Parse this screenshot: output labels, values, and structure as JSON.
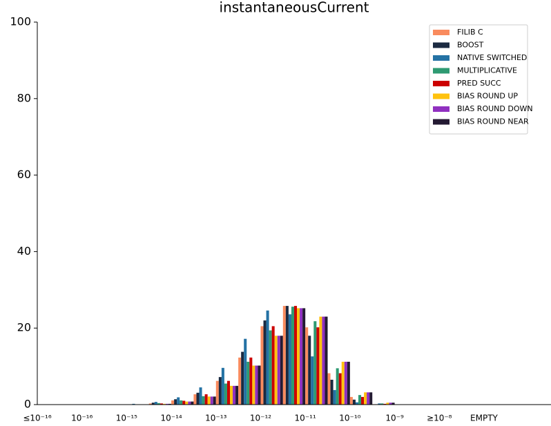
{
  "chart_data": {
    "type": "bar",
    "title": "instantaneousCurrent",
    "categories": [
      "≤10⁻¹⁶",
      null,
      "10⁻¹⁶",
      null,
      "10⁻¹⁵",
      null,
      "10⁻¹⁴",
      null,
      "10⁻¹³",
      null,
      "10⁻¹²",
      null,
      "10⁻¹¹",
      null,
      "10⁻¹⁰",
      null,
      "10⁻⁹",
      null,
      "≥10⁻⁸",
      null,
      "EMPTY",
      null,
      null
    ],
    "series": [
      {
        "name": "FILIB C",
        "color": "#f98b5e",
        "values": [
          0,
          0,
          0,
          0,
          0,
          0.3,
          1.1,
          2.7,
          6.2,
          12.3,
          20.5,
          25.8,
          20.2,
          8.2,
          2.0,
          0.1,
          0,
          0,
          0,
          0,
          0,
          0,
          0
        ]
      },
      {
        "name": "BOOST",
        "color": "#1b2a41",
        "values": [
          0,
          0,
          0,
          0,
          0,
          0.5,
          1.4,
          3.1,
          7.2,
          13.8,
          22,
          25.8,
          18,
          6.5,
          1.3,
          0.1,
          0,
          0,
          0,
          0,
          0,
          0,
          0
        ]
      },
      {
        "name": "NATIVE SWITCHED",
        "color": "#2472a4",
        "values": [
          0,
          0,
          0,
          0,
          0.2,
          0.7,
          1.9,
          4.5,
          9.6,
          17.2,
          24.6,
          23.6,
          12.6,
          3.8,
          0.6,
          0.3,
          0,
          0,
          0,
          0,
          0,
          0,
          0
        ]
      },
      {
        "name": "MULTIPLICATIVE",
        "color": "#2e9a72",
        "values": [
          0,
          0,
          0,
          0,
          0,
          0.4,
          1.1,
          2.2,
          5.5,
          11.2,
          19.4,
          25.6,
          21.8,
          9.5,
          2.5,
          0.3,
          0,
          0,
          0,
          0,
          0,
          0,
          0
        ]
      },
      {
        "name": "PRED SUCC",
        "color": "#cc0000",
        "values": [
          0,
          0,
          0,
          0,
          0,
          0.3,
          1.0,
          2.7,
          6.2,
          12.3,
          20.5,
          25.8,
          20.2,
          8.2,
          2.0,
          0.2,
          0,
          0,
          0,
          0,
          0,
          0,
          0
        ]
      },
      {
        "name": "BIAS ROUND UP",
        "color": "#ffc20e",
        "values": [
          0,
          0,
          0,
          0,
          0,
          0.2,
          0.8,
          2.1,
          4.9,
          10.2,
          18,
          25.2,
          23,
          11.2,
          3.2,
          0.5,
          0,
          0,
          0,
          0,
          0,
          0,
          0
        ]
      },
      {
        "name": "BIAS ROUND DOWN",
        "color": "#9030c0",
        "values": [
          0,
          0,
          0,
          0,
          0,
          0.2,
          0.8,
          2.1,
          4.9,
          10.2,
          18,
          25.2,
          23,
          11.2,
          3.2,
          0.5,
          0,
          0,
          0,
          0,
          0,
          0,
          0
        ]
      },
      {
        "name": "BIAS ROUND NEAR",
        "color": "#241a33",
        "values": [
          0,
          0,
          0,
          0,
          0,
          0.2,
          0.8,
          2.1,
          4.9,
          10.2,
          18,
          25.2,
          23,
          11.2,
          3.2,
          0.5,
          0,
          0,
          0,
          0,
          0,
          0,
          0
        ]
      }
    ],
    "ylim": [
      0,
      100
    ],
    "yticks": [
      0,
      20,
      40,
      60,
      80,
      100
    ],
    "grid": false,
    "legend": "upper right"
  }
}
